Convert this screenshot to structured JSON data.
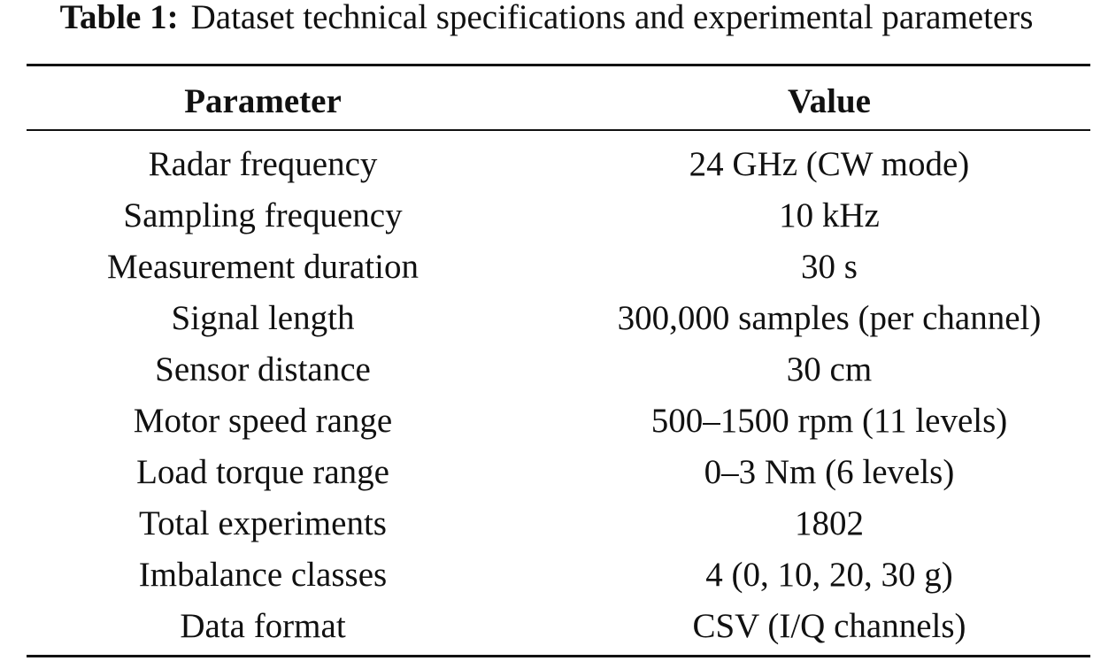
{
  "caption": {
    "label": "Table 1:",
    "text": "Dataset technical specifications and experimental parameters"
  },
  "table": {
    "headers": [
      "Parameter",
      "Value"
    ],
    "rows": [
      [
        "Radar frequency",
        "24 GHz (CW mode)"
      ],
      [
        "Sampling frequency",
        "10 kHz"
      ],
      [
        "Measurement duration",
        "30 s"
      ],
      [
        "Signal length",
        "300,000 samples (per channel)"
      ],
      [
        "Sensor distance",
        "30 cm"
      ],
      [
        "Motor speed range",
        "500–1500 rpm (11 levels)"
      ],
      [
        "Load torque range",
        "0–3 Nm (6 levels)"
      ],
      [
        "Total experiments",
        "1802"
      ],
      [
        "Imbalance classes",
        "4 (0, 10, 20, 30 g)"
      ],
      [
        "Data format",
        "CSV (I/Q channels)"
      ]
    ]
  }
}
